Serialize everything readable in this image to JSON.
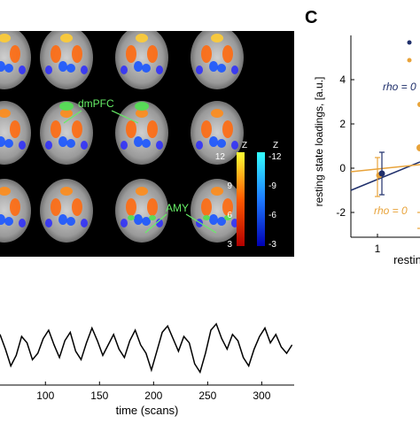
{
  "brain": {
    "roi_labels": [
      "dmPFC",
      "AMY"
    ],
    "colorbar_pos": {
      "label": "Z",
      "ticks": [
        "12",
        "9",
        "6",
        "3"
      ]
    },
    "colorbar_neg": {
      "label": "Z",
      "ticks": [
        "-12",
        "-9",
        "-6",
        "-3"
      ]
    },
    "colors": {
      "pos_top": "#ffff33",
      "pos_bottom": "#b30000",
      "neg_top": "#33ffff",
      "neg_bottom": "#0000b3",
      "roi": "#55dd55"
    }
  },
  "scatter": {
    "panel_letter": "C",
    "ylabel": "resting state loadings, [a.u.]",
    "xlabel": "restin",
    "yticks": [
      "4",
      "2",
      "0",
      "-2"
    ],
    "xticks": [
      "1"
    ],
    "rho_blue": "rho = 0",
    "rho_orange": "rho = 0",
    "colors": {
      "blue": "#1f2f6b",
      "orange": "#e8a33a"
    }
  },
  "chart_data": {
    "type": "line",
    "xlabel": "time (scans)",
    "ylabel": "",
    "xticks": [
      "100",
      "150",
      "200",
      "250",
      "300"
    ],
    "xlim": [
      58,
      330
    ],
    "ylim": [
      -1.6,
      1.6
    ],
    "x": [
      58,
      63,
      68,
      73,
      78,
      83,
      88,
      93,
      98,
      103,
      108,
      113,
      118,
      123,
      128,
      133,
      138,
      143,
      148,
      153,
      158,
      163,
      168,
      173,
      178,
      183,
      188,
      193,
      198,
      203,
      208,
      213,
      218,
      223,
      228,
      233,
      238,
      243,
      248,
      253,
      258,
      263,
      268,
      273,
      278,
      283,
      288,
      293,
      298,
      303,
      308,
      313,
      318,
      323,
      328
    ],
    "series": [
      {
        "values": [
          0.6,
          -0.1,
          -0.9,
          -0.4,
          0.5,
          0.2,
          -0.6,
          -0.3,
          0.4,
          0.8,
          0.1,
          -0.5,
          0.3,
          0.7,
          -0.2,
          -0.6,
          0.2,
          0.9,
          0.3,
          -0.4,
          0.1,
          0.6,
          -0.1,
          -0.5,
          0.3,
          0.8,
          0.1,
          -0.3,
          -1.1,
          -0.2,
          0.7,
          1.0,
          0.4,
          -0.2,
          0.5,
          0.2,
          -0.8,
          -1.2,
          -0.3,
          0.8,
          1.1,
          0.4,
          -0.1,
          0.6,
          0.3,
          -0.5,
          -0.9,
          -0.1,
          0.5,
          0.9,
          0.2,
          0.6,
          0.0,
          -0.3,
          0.1
        ]
      }
    ]
  }
}
